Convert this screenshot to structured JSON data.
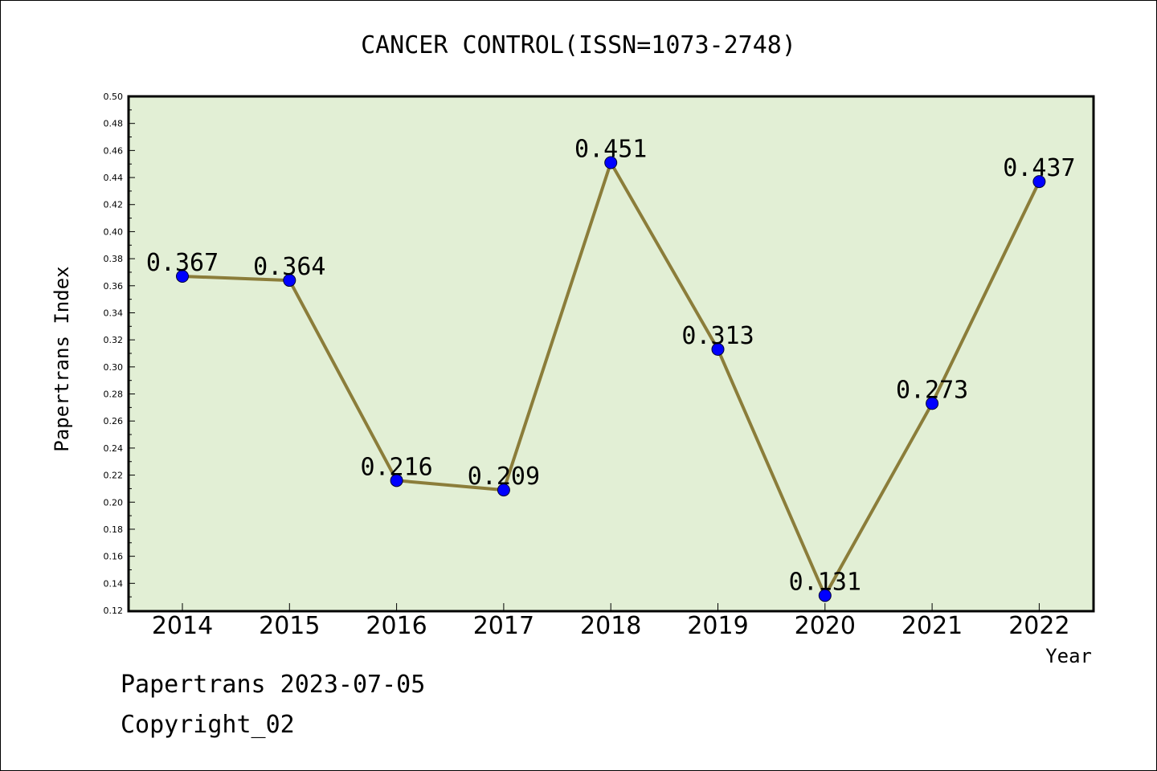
{
  "chart_data": {
    "type": "line",
    "title": "CANCER CONTROL(ISSN=1073-2748)",
    "xlabel": "Year",
    "ylabel": "Papertrans Index",
    "categories": [
      "2014",
      "2015",
      "2016",
      "2017",
      "2018",
      "2019",
      "2020",
      "2021",
      "2022"
    ],
    "series": [
      {
        "values": [
          0.367,
          0.364,
          0.216,
          0.209,
          0.451,
          0.313,
          0.131,
          0.273,
          0.437
        ]
      }
    ],
    "data_labels": [
      "0.367",
      "0.364",
      "0.216",
      "0.209",
      "0.451",
      "0.313",
      "0.131",
      "0.273",
      "0.437"
    ],
    "ylim": [
      0.12,
      0.5
    ],
    "yticks": [
      "0.12",
      "0.14",
      "0.16",
      "0.18",
      "0.20",
      "0.22",
      "0.24",
      "0.26",
      "0.28",
      "0.30",
      "0.32",
      "0.34",
      "0.36",
      "0.38",
      "0.40",
      "0.42",
      "0.44",
      "0.46",
      "0.48",
      "0.50"
    ],
    "grid": false,
    "legend": "none",
    "colors": {
      "plot_background": "#e2efd5",
      "line": "#8b7d3a",
      "marker": "#0000ff"
    }
  },
  "footer": {
    "line1": "Papertrans 2023-07-05",
    "line2": "Copyright_02"
  }
}
